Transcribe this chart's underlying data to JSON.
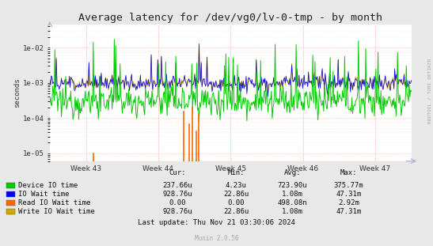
{
  "title": "Average latency for /dev/vg0/lv-0-tmp - by month",
  "ylabel": "seconds",
  "xlabel_ticks": [
    "Week 43",
    "Week 44",
    "Week 45",
    "Week 46",
    "Week 47"
  ],
  "background_color": "#e8e8e8",
  "plot_bg_color": "#ffffff",
  "grid_color_minor": "#e8c8c8",
  "grid_color_major": "#ffaaaa",
  "title_fontsize": 9.5,
  "axis_fontsize": 6.5,
  "legend_fontsize": 6.5,
  "colors": {
    "device_io": "#00cc00",
    "io_wait": "#0000ff",
    "read_io_wait": "#ff6600",
    "write_io_wait": "#ccaa00"
  },
  "legend_labels": [
    "Device IO time",
    "IO Wait time",
    "Read IO Wait time",
    "Write IO Wait time"
  ],
  "legend_colors": [
    "#00cc00",
    "#0000ff",
    "#ff6600",
    "#ccaa00"
  ],
  "stats_headers": [
    "Cur:",
    "Min:",
    "Avg:",
    "Max:"
  ],
  "stats_data": [
    [
      "237.66u",
      "4.23u",
      "723.90u",
      "375.77m"
    ],
    [
      "928.76u",
      "22.86u",
      "1.08m",
      "47.31m"
    ],
    [
      "0.00",
      "0.00",
      "498.08n",
      "2.92m"
    ],
    [
      "928.76u",
      "22.86u",
      "1.08m",
      "47.31m"
    ]
  ],
  "last_update": "Last update: Thu Nov 21 03:30:06 2024",
  "munin_label": "Munin 2.0.56",
  "rrdtool_label": "RRDTOOL / TOBI OETIKER",
  "yticks": [
    1e-05,
    0.0001,
    0.001,
    0.01
  ],
  "ytick_labels": [
    "1e-05",
    "1e-04",
    "1e-03",
    "1e-02"
  ],
  "ymin": 6e-06,
  "ymax": 0.045,
  "seed": 12345,
  "n_points": 500
}
